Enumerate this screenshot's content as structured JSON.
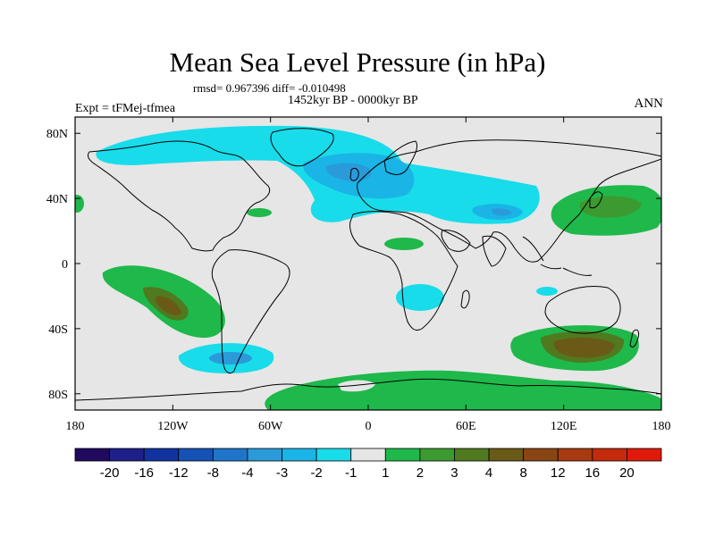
{
  "title": "Mean Sea Level Pressure (in hPa)",
  "stats": "rmsd= 0.967396 diff= -0.010498",
  "period": "1452kyr BP - 0000kyr BP",
  "experiment": "Expt = tFMej-tfmea",
  "season": "ANN",
  "map": {
    "lon_range": [
      -180,
      180
    ],
    "lat_range": [
      -90,
      90
    ],
    "x_ticks": [
      {
        "value": -180,
        "label": "180"
      },
      {
        "value": -120,
        "label": "120W"
      },
      {
        "value": -60,
        "label": "60W"
      },
      {
        "value": 0,
        "label": "0"
      },
      {
        "value": 60,
        "label": "60E"
      },
      {
        "value": 120,
        "label": "120E"
      },
      {
        "value": 180,
        "label": "180"
      }
    ],
    "y_ticks": [
      {
        "value": 80,
        "label": "80N"
      },
      {
        "value": 40,
        "label": "40N"
      },
      {
        "value": 0,
        "label": "0"
      },
      {
        "value": -40,
        "label": "40S"
      },
      {
        "value": -80,
        "label": "80S"
      }
    ],
    "background_color": "#e6e6e6"
  },
  "colorbar": {
    "colors": [
      "#1f0a5e",
      "#1f1f8a",
      "#1133a0",
      "#1552b5",
      "#1f75c9",
      "#2a9ad9",
      "#1ab4e6",
      "#18dcea",
      "#e6e6e6",
      "#1fb84b",
      "#3c9a30",
      "#4f7a1f",
      "#6a5a17",
      "#8a4514",
      "#a83a10",
      "#c42a0c",
      "#e01a0a"
    ],
    "labels": [
      "-20",
      "-16",
      "-12",
      "-8",
      "-4",
      "-3",
      "-2",
      "-1",
      "1",
      "2",
      "3",
      "4",
      "8",
      "12",
      "16",
      "20"
    ]
  }
}
